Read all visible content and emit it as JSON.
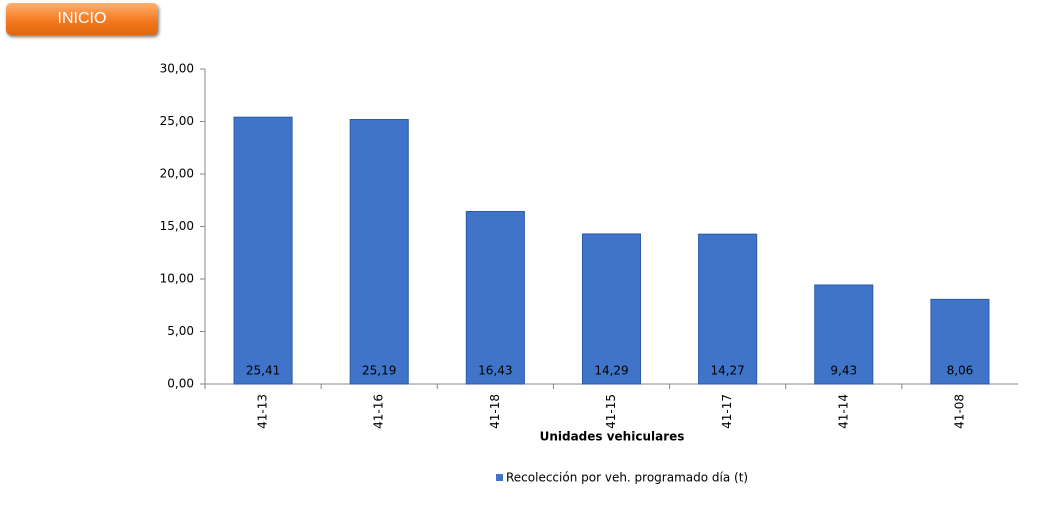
{
  "button": {
    "label": "INICIO"
  },
  "chart_data": {
    "type": "bar",
    "categories": [
      "41-13",
      "41-16",
      "41-18",
      "41-15",
      "41-17",
      "41-14",
      "41-08"
    ],
    "series": [
      {
        "name": "Recolección por veh. programado día (t)",
        "color": "#3f74c8",
        "values": [
          25.41,
          25.19,
          16.43,
          14.29,
          14.27,
          9.43,
          8.06
        ],
        "value_labels": [
          "25,41",
          "25,19",
          "16,43",
          "14,29",
          "14,27",
          "9,43",
          "8,06"
        ]
      }
    ],
    "x_label": "Unidades vehiculares",
    "ylim": [
      0,
      30
    ],
    "yticks": [
      {
        "value": 0,
        "label": "0,00"
      },
      {
        "value": 5,
        "label": "5,00"
      },
      {
        "value": 10,
        "label": "10,00"
      },
      {
        "value": 15,
        "label": "15,00"
      },
      {
        "value": 20,
        "label": "20,00"
      },
      {
        "value": 25,
        "label": "25,00"
      },
      {
        "value": 30,
        "label": "30,00"
      }
    ],
    "grid": false,
    "legend": "bottom"
  }
}
